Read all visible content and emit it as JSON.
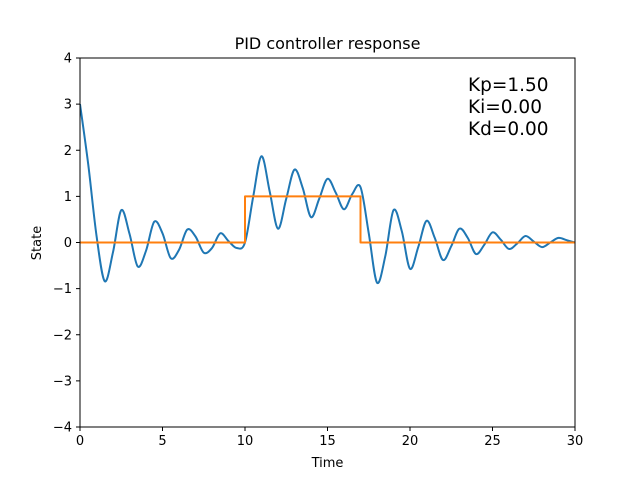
{
  "chart_data": {
    "type": "line",
    "title": "PID controller response",
    "xlabel": "Time",
    "ylabel": "State",
    "xlim": [
      0,
      30
    ],
    "ylim": [
      -4,
      4
    ],
    "xticks": [
      0,
      5,
      10,
      15,
      20,
      25,
      30
    ],
    "yticks": [
      -4,
      -3,
      -2,
      -1,
      0,
      1,
      2,
      3,
      4
    ],
    "grid": false,
    "annotations": [
      "Kp=1.50",
      "Ki=0.00",
      "Kd=0.00"
    ],
    "series": [
      {
        "color": "#1f77b4",
        "x": [
          0,
          0.5,
          1.0,
          1.5,
          2.0,
          2.5,
          3.0,
          3.5,
          4.0,
          4.5,
          5.0,
          5.5,
          6.0,
          6.5,
          7.0,
          7.5,
          8.0,
          8.5,
          9.0,
          9.5,
          10.0,
          10.5,
          11.0,
          11.5,
          12.0,
          12.5,
          13.0,
          13.5,
          14.0,
          14.5,
          15.0,
          15.5,
          16.0,
          16.5,
          17.0,
          17.5,
          18.0,
          18.5,
          19.0,
          19.5,
          20.0,
          20.5,
          21.0,
          21.5,
          22.0,
          22.5,
          23.0,
          23.5,
          24.0,
          24.5,
          25.0,
          25.5,
          26.0,
          26.5,
          27.0,
          27.5,
          28.0,
          28.5,
          29.0,
          29.5,
          30.0
        ],
        "y": [
          3.0,
          1.69,
          0.15,
          -0.84,
          -0.21,
          0.7,
          0.19,
          -0.52,
          -0.18,
          0.45,
          0.2,
          -0.34,
          -0.16,
          0.28,
          0.13,
          -0.22,
          -0.12,
          0.2,
          0.03,
          -0.12,
          0.0,
          1.0,
          1.87,
          1.1,
          0.3,
          0.95,
          1.58,
          1.18,
          0.55,
          0.95,
          1.38,
          1.08,
          0.72,
          1.05,
          1.2,
          0.2,
          -0.87,
          -0.3,
          0.7,
          0.25,
          -0.57,
          -0.1,
          0.47,
          0.1,
          -0.38,
          -0.08,
          0.3,
          0.1,
          -0.25,
          -0.05,
          0.22,
          0.06,
          -0.14,
          -0.02,
          0.14,
          0.02,
          -0.1,
          0.0,
          0.1,
          0.05,
          0.0
        ]
      },
      {
        "color": "#ff7f0e",
        "x": [
          0,
          10,
          10,
          17,
          17,
          30
        ],
        "y": [
          0,
          0,
          1,
          1,
          0,
          0
        ]
      }
    ]
  }
}
